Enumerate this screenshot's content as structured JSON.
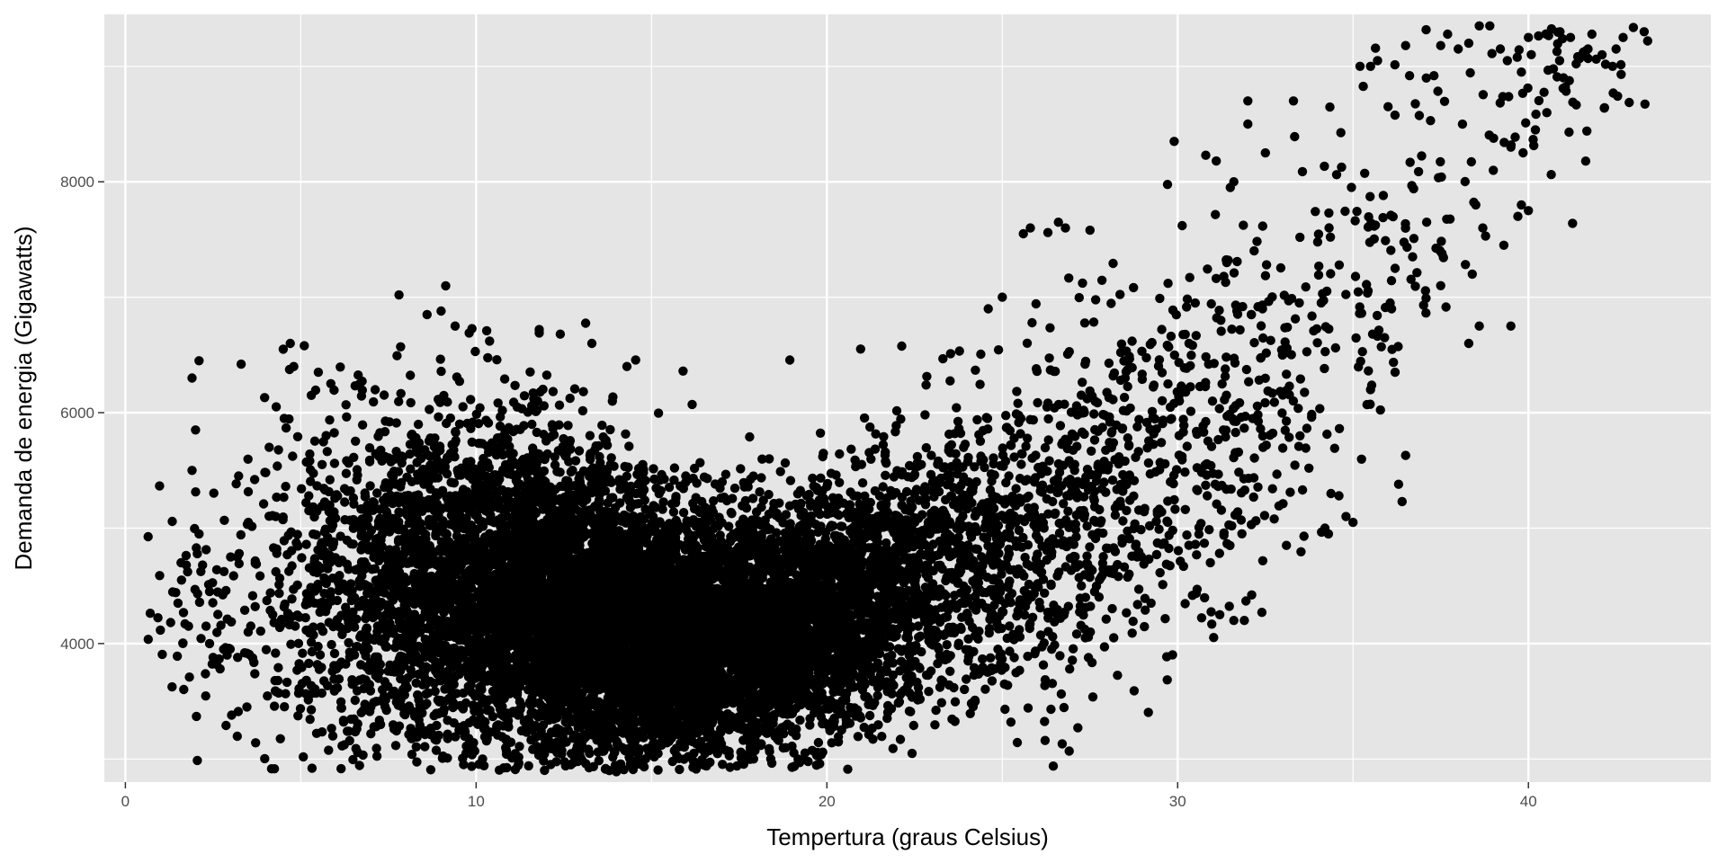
{
  "chart_data": {
    "type": "scatter",
    "title": "",
    "xlabel": "Tempertura (graus Celsius)",
    "ylabel": "Demanda de energia (Gigawatts)",
    "xlim": [
      -0.6,
      45.2
    ],
    "ylim": [
      2800,
      9450
    ],
    "x_ticks": [
      0,
      10,
      20,
      30,
      40
    ],
    "y_ticks": [
      4000,
      6000,
      8000
    ],
    "x_minor_gridlines": [
      5,
      15,
      25,
      35
    ],
    "y_minor_gridlines": [
      3000,
      5000,
      7000,
      9000
    ],
    "grid": true,
    "legend": "none",
    "point_color": "#000000",
    "panel_color": "#e5e5e5",
    "grid_color": "#ffffff",
    "series": [
      {
        "clusters": [
          {
            "cx": 2.3,
            "cy": 4300,
            "sx": 0.8,
            "sy": 500,
            "n": 60,
            "corr": 0
          },
          {
            "cx": 5.5,
            "cy": 4500,
            "sx": 1.3,
            "sy": 750,
            "n": 260,
            "corr": 0
          },
          {
            "cx": 8.5,
            "cy": 4400,
            "sx": 1.6,
            "sy": 800,
            "n": 1400,
            "corr": 0
          },
          {
            "cx": 12.5,
            "cy": 4300,
            "sx": 1.7,
            "sy": 720,
            "n": 3200,
            "corr": -0.2
          },
          {
            "cx": 15.5,
            "cy": 4100,
            "sx": 1.8,
            "sy": 550,
            "n": 2600,
            "corr": 0
          },
          {
            "cx": 18.5,
            "cy": 4150,
            "sx": 1.7,
            "sy": 520,
            "n": 1900,
            "corr": 0.2
          },
          {
            "cx": 21.5,
            "cy": 4500,
            "sx": 1.5,
            "sy": 560,
            "n": 1000,
            "corr": 0.3
          },
          {
            "cx": 24.5,
            "cy": 4800,
            "sx": 1.5,
            "sy": 750,
            "n": 520,
            "corr": 0.3
          },
          {
            "cx": 27.5,
            "cy": 5200,
            "sx": 1.5,
            "sy": 900,
            "n": 360,
            "corr": 0.4
          },
          {
            "cx": 30.5,
            "cy": 5700,
            "sx": 1.5,
            "sy": 850,
            "n": 240,
            "corr": 0.4
          },
          {
            "cx": 33.5,
            "cy": 6500,
            "sx": 1.4,
            "sy": 850,
            "n": 130,
            "corr": 0.4
          },
          {
            "cx": 37.0,
            "cy": 7900,
            "sx": 1.8,
            "sy": 800,
            "n": 85,
            "corr": 0.5
          },
          {
            "cx": 41.0,
            "cy": 8900,
            "sx": 1.2,
            "sy": 350,
            "n": 60,
            "corr": 0.3
          }
        ],
        "points": [
          [
            1.5,
            4350
          ],
          [
            1.6,
            4550
          ],
          [
            1.8,
            4150
          ],
          [
            1.9,
            6300
          ],
          [
            1.9,
            5500
          ],
          [
            2.0,
            5850
          ],
          [
            2.1,
            6450
          ],
          [
            2.1,
            4950
          ],
          [
            2.2,
            4680
          ],
          [
            2.3,
            4150
          ],
          [
            2.4,
            4450
          ],
          [
            2.4,
            4000
          ],
          [
            2.5,
            3880
          ],
          [
            2.6,
            3820
          ],
          [
            2.7,
            3780
          ],
          [
            2.8,
            3950
          ],
          [
            2.9,
            3900
          ],
          [
            3.0,
            4750
          ],
          [
            3.2,
            3880
          ],
          [
            3.3,
            6420
          ],
          [
            3.4,
            3920
          ],
          [
            3.5,
            4100
          ],
          [
            3.7,
            4320
          ],
          [
            4.0,
            5480
          ],
          [
            4.1,
            5700
          ],
          [
            4.2,
            4250
          ],
          [
            4.3,
            6050
          ],
          [
            4.5,
            6550
          ],
          [
            4.7,
            6600
          ],
          [
            4.8,
            6400
          ],
          [
            5.1,
            6580
          ],
          [
            5.3,
            6150
          ],
          [
            5.5,
            6350
          ],
          [
            8.6,
            6850
          ],
          [
            9.0,
            6880
          ],
          [
            9.4,
            6750
          ],
          [
            9.8,
            6690
          ],
          [
            10.3,
            6710
          ],
          [
            11.8,
            6720
          ],
          [
            12.4,
            6680
          ],
          [
            13.3,
            6600
          ],
          [
            14.3,
            6400
          ],
          [
            15.9,
            6360
          ],
          [
            14.0,
            2890
          ],
          [
            14.4,
            2950
          ],
          [
            17.6,
            3000
          ],
          [
            18.4,
            3000
          ],
          [
            16.6,
            2960
          ],
          [
            12.7,
            2950
          ],
          [
            13.8,
            2900
          ],
          [
            25.6,
            7550
          ],
          [
            25.8,
            7600
          ],
          [
            26.3,
            7560
          ],
          [
            26.6,
            7650
          ],
          [
            26.8,
            7600
          ],
          [
            27.5,
            7580
          ],
          [
            24.6,
            6900
          ],
          [
            25.0,
            7000
          ],
          [
            30.5,
            6950
          ],
          [
            29.9,
            8350
          ],
          [
            30.8,
            8230
          ],
          [
            31.1,
            8180
          ],
          [
            31.5,
            7950
          ],
          [
            31.6,
            8000
          ],
          [
            31.4,
            7300
          ],
          [
            32.0,
            8700
          ],
          [
            32.0,
            8500
          ],
          [
            32.5,
            8250
          ],
          [
            33.3,
            8700
          ],
          [
            32.1,
            6850
          ],
          [
            31.2,
            4250
          ],
          [
            31.6,
            4200
          ],
          [
            31.9,
            4200
          ],
          [
            32.4,
            4270
          ],
          [
            32.1,
            5030
          ],
          [
            33.1,
            4850
          ],
          [
            33.6,
            4930
          ],
          [
            34.2,
            5000
          ],
          [
            34.3,
            4950
          ],
          [
            34.6,
            5280
          ],
          [
            34.8,
            5100
          ],
          [
            35.0,
            5050
          ],
          [
            36.2,
            6350
          ],
          [
            36.5,
            5630
          ],
          [
            36.3,
            5380
          ],
          [
            36.4,
            5230
          ],
          [
            35.5,
            6200
          ],
          [
            35.4,
            6070
          ],
          [
            35.9,
            6650
          ],
          [
            36.1,
            6900
          ],
          [
            35.2,
            9000
          ],
          [
            35.5,
            9000
          ],
          [
            35.7,
            9050
          ],
          [
            36.0,
            8650
          ],
          [
            36.5,
            9180
          ],
          [
            37.5,
            9180
          ],
          [
            38.0,
            9150
          ],
          [
            38.3,
            9200
          ],
          [
            38.6,
            9350
          ],
          [
            38.9,
            9350
          ],
          [
            39.2,
            9150
          ],
          [
            39.4,
            9050
          ],
          [
            39.8,
            8950
          ],
          [
            40.0,
            9250
          ],
          [
            40.5,
            9280
          ],
          [
            40.9,
            9300
          ],
          [
            41.2,
            9250
          ],
          [
            41.7,
            9150
          ],
          [
            42.1,
            9100
          ],
          [
            42.5,
            9150
          ],
          [
            42.7,
            9250
          ],
          [
            43.3,
            9300
          ],
          [
            43.4,
            9220
          ],
          [
            42.4,
            9000
          ],
          [
            41.0,
            8900
          ],
          [
            40.2,
            8450
          ],
          [
            38.3,
            6600
          ],
          [
            38.4,
            7200
          ],
          [
            38.6,
            6750
          ],
          [
            39.0,
            8100
          ],
          [
            39.5,
            6750
          ],
          [
            39.5,
            8300
          ],
          [
            39.8,
            7800
          ],
          [
            40.0,
            7750
          ],
          [
            39.7,
            7700
          ],
          [
            39.3,
            7450
          ],
          [
            38.7,
            7600
          ],
          [
            38.5,
            7800
          ],
          [
            37.5,
            7100
          ],
          [
            36.2,
            7250
          ],
          [
            36.7,
            7350
          ],
          [
            37.1,
            7650
          ]
        ]
      }
    ]
  }
}
